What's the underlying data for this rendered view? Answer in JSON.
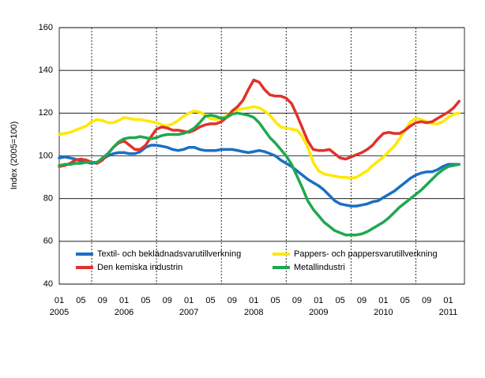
{
  "chart_data": {
    "type": "line",
    "y_label": "Index (2005=100)",
    "categories": [
      "01",
      null,
      null,
      null,
      "05",
      null,
      null,
      null,
      "09",
      null,
      null,
      null,
      "01",
      null,
      null,
      null,
      "05",
      null,
      null,
      null,
      "09",
      null,
      null,
      null,
      "01",
      null,
      null,
      null,
      "05",
      null,
      null,
      null,
      "09",
      null,
      null,
      null,
      "01",
      null,
      null,
      null,
      "05",
      null,
      null,
      null,
      "09",
      null,
      null,
      null,
      "01",
      null,
      null,
      null,
      "05",
      null,
      null,
      null,
      "09",
      null,
      null,
      null,
      "01",
      null,
      null,
      null,
      "05",
      null,
      null,
      null,
      "09",
      null,
      null,
      null,
      "01",
      null,
      null
    ],
    "year_labels": [
      {
        "value": 0,
        "label": "2005"
      },
      {
        "value": 12,
        "label": "2006"
      },
      {
        "value": 24,
        "label": "2007"
      },
      {
        "value": 36,
        "label": "2008"
      },
      {
        "value": 48,
        "label": "2009"
      },
      {
        "value": 60,
        "label": "2010"
      },
      {
        "value": 72,
        "label": "2011"
      }
    ],
    "ylim": [
      40,
      160
    ],
    "yticks": [
      40,
      60,
      80,
      100,
      120,
      140,
      160
    ],
    "grid": true,
    "series": [
      {
        "name": "Textil- och beklädnadsvarutillverkning",
        "color": "#1a6fc4",
        "values": [
          99,
          99.5,
          99,
          98.5,
          97.5,
          97,
          96.5,
          97,
          98.5,
          100,
          101,
          101.5,
          101.5,
          101,
          101,
          102,
          104,
          105,
          105,
          104.5,
          104,
          103,
          102.5,
          103,
          104,
          104,
          103,
          102.5,
          102.5,
          102.5,
          103,
          103,
          103,
          102.5,
          102,
          101.5,
          102,
          102.5,
          102,
          101,
          100,
          98,
          96.5,
          95,
          93,
          91,
          89,
          87.5,
          86,
          84,
          81.5,
          79,
          77.5,
          77,
          76.5,
          76.5,
          77,
          77.5,
          78.5,
          79,
          80.5,
          82,
          83.5,
          85.5,
          87.5,
          89.5,
          91,
          92,
          92.5,
          92.5,
          93.5,
          95,
          96,
          96,
          96
        ]
      },
      {
        "name": "Pappers- och pappersvarutillverkning",
        "color": "#ffe800",
        "values": [
          110,
          110.5,
          111,
          112,
          113,
          114,
          116,
          117,
          116.5,
          115.5,
          115.5,
          116.5,
          118,
          117.5,
          117,
          117,
          116.5,
          116,
          115.5,
          114.5,
          114,
          115,
          116.5,
          118.5,
          120,
          121,
          120.5,
          119,
          117.5,
          117,
          117.5,
          119,
          120.5,
          121.5,
          122,
          122.5,
          123,
          122.5,
          121,
          119,
          116,
          113.5,
          113,
          112.5,
          112,
          109,
          104,
          97,
          93,
          91.5,
          91,
          90.5,
          90,
          90,
          89.5,
          90,
          91.5,
          93,
          95.5,
          97.5,
          99.5,
          102,
          104.5,
          108,
          112,
          116,
          117.5,
          117,
          116,
          115,
          115,
          116,
          118,
          119.5,
          120
        ]
      },
      {
        "name": "Den kemiska industrin",
        "color": "#e0322b",
        "values": [
          95,
          95.5,
          96.5,
          98,
          98.5,
          98,
          97,
          96.5,
          98,
          101,
          104,
          106,
          107,
          105,
          103,
          103,
          105,
          109,
          112.5,
          113.5,
          113,
          112,
          112,
          111.5,
          111,
          112,
          113.5,
          114.5,
          115,
          115,
          116,
          118,
          121,
          123,
          126,
          131,
          135.5,
          134.5,
          131,
          128.5,
          128,
          128,
          127,
          124.5,
          119,
          113,
          107,
          103,
          102.5,
          102.5,
          103,
          101,
          99,
          98.5,
          99.5,
          100.5,
          101.5,
          103,
          105,
          108,
          110.5,
          111,
          110.5,
          110.5,
          112,
          114,
          115.5,
          116,
          115.5,
          116,
          117.5,
          119,
          120.5,
          122.5,
          125.5
        ]
      },
      {
        "name": "Metallindustri",
        "color": "#1fa84f",
        "values": [
          95.5,
          96,
          96,
          96.5,
          96.5,
          97,
          97,
          97,
          99,
          101,
          104,
          106.5,
          108,
          108.5,
          108.5,
          109,
          108.5,
          108,
          108.5,
          109.5,
          110,
          110,
          110,
          110.5,
          111.5,
          113,
          115.5,
          118.5,
          119,
          118.5,
          117.5,
          118,
          119.5,
          120,
          119.5,
          119,
          118,
          115.5,
          112,
          108.5,
          106,
          103,
          100,
          96,
          90.5,
          85,
          79,
          75,
          72,
          69,
          67,
          65,
          64,
          63,
          63,
          63,
          63.5,
          64.5,
          66,
          67.5,
          69,
          71,
          73.5,
          76,
          78,
          80,
          82,
          84,
          86.5,
          89,
          91.5,
          93.5,
          95,
          95.5,
          96
        ]
      }
    ]
  }
}
